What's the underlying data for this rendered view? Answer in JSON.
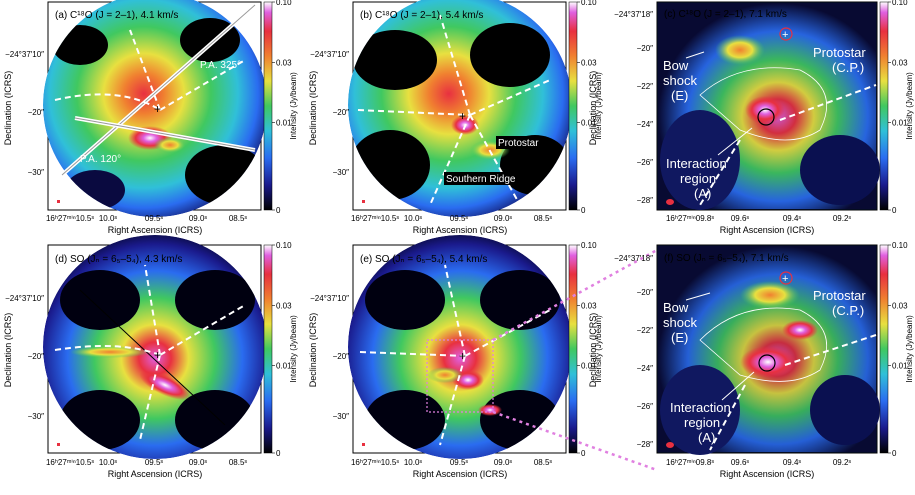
{
  "colorbar": {
    "label": "Intensity (Jy/beam)",
    "ticks": [
      "0.10",
      "0.03",
      "0.01",
      "0"
    ]
  },
  "axes": {
    "xlabel": "Right Ascension (ICRS)",
    "ylabel": "Declination (ICRS)"
  },
  "panels": [
    {
      "id": "a",
      "title": "(a) C¹⁸O (J = 2–1), 4.1 km/s",
      "xticks": [
        "16ʰ27ᵐⁱⁿ10.5ˢ",
        "10.0ˢ",
        "09.5ˢ",
        "09.0ˢ",
        "08.5ˢ"
      ],
      "yticks": [
        "−24°37′10″",
        "−20″",
        "−30″"
      ],
      "annotations": [
        "P.A. 325°",
        "P.A. 120°"
      ]
    },
    {
      "id": "b",
      "title": "(b) C¹⁸O (J = 2–1), 5.4 km/s",
      "xticks": [
        "16ʰ27ᵐⁱⁿ10.5ˢ",
        "10.0ˢ",
        "09.5ˢ",
        "09.0ˢ",
        "08.5ˢ"
      ],
      "yticks": [
        "−24°37′10″",
        "−20″",
        "−30″"
      ],
      "annotations": [
        "Protostar",
        "Southern Ridge"
      ]
    },
    {
      "id": "c",
      "title": "(c) C¹⁸O (J = 2–1), 7.1 km/s",
      "xticks": [
        "16ʰ27ᵐⁱⁿ09.8ˢ",
        "09.6ˢ",
        "09.4ˢ",
        "09.2ˢ"
      ],
      "yticks": [
        "−24°37′18″",
        "−20″",
        "−22″",
        "−24″",
        "−26″",
        "−28″"
      ],
      "annotations": [
        "Bow shock (E)",
        "Protostar (C.P.)",
        "Interaction region (A)"
      ]
    },
    {
      "id": "d",
      "title": "(d) SO (Jₙ = 6₅–5₄), 4.3 km/s",
      "xticks": [
        "16ʰ27ᵐⁱⁿ10.5ˢ",
        "10.0ˢ",
        "09.5ˢ",
        "09.0ˢ",
        "08.5ˢ"
      ],
      "yticks": [
        "−24°37′10″",
        "−20″",
        "−30″"
      ],
      "annotations": []
    },
    {
      "id": "e",
      "title": "(e) SO (Jₙ = 6₅–5₄), 5.4 km/s",
      "xticks": [
        "16ʰ27ᵐⁱⁿ10.5ˢ",
        "10.0ˢ",
        "09.5ˢ",
        "09.0ˢ",
        "08.5ˢ"
      ],
      "yticks": [
        "−24°37′10″",
        "−20″",
        "−30″"
      ],
      "annotations": []
    },
    {
      "id": "f",
      "title": "(f) SO (Jₙ = 6₅–5₄), 7.1 km/s",
      "xticks": [
        "16ʰ27ᵐⁱⁿ09.8ˢ",
        "09.6ˢ",
        "09.4ˢ",
        "09.2ˢ"
      ],
      "yticks": [
        "−24°37′18″",
        "−20″",
        "−22″",
        "−24″",
        "−26″",
        "−28″"
      ],
      "annotations": [
        "Bow shock (E)",
        "Protostar (C.P.)",
        "Interaction region (A)"
      ]
    }
  ],
  "chart_data": {
    "type": "heatmap",
    "colorscale": [
      "#000000",
      "#1a1a8c",
      "#2a6cf0",
      "#30c0d8",
      "#40c860",
      "#e8e040",
      "#f08030",
      "#e83040",
      "#e060e0",
      "#ffffff"
    ],
    "colorbar_range": [
      0,
      0.1
    ],
    "colorbar_scale": "log"
  }
}
